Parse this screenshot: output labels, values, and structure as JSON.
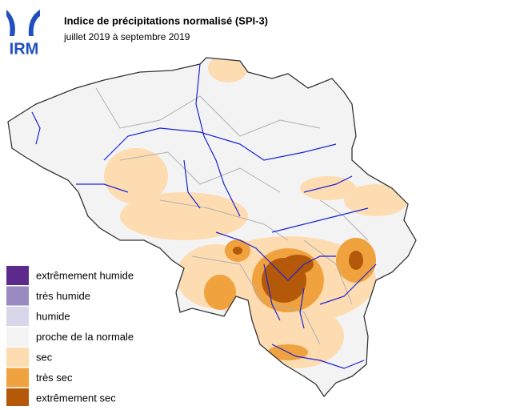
{
  "header": {
    "logo": "IRM",
    "title": "Indice de précipitations normalisé (SPI-3)",
    "subtitle": "juillet 2019 à septembre 2019"
  },
  "legend": {
    "items": [
      {
        "label": "extrêmement humide",
        "color": "#5b2a8c"
      },
      {
        "label": "très humide",
        "color": "#9a8ac2"
      },
      {
        "label": "humide",
        "color": "#d8d7ea"
      },
      {
        "label": "proche de la normale",
        "color": "#f3f3f3"
      },
      {
        "label": "sec",
        "color": "#fddcb2"
      },
      {
        "label": "très sec",
        "color": "#f0a23e"
      },
      {
        "label": "extrêmement sec",
        "color": "#b4590a"
      }
    ]
  }
}
